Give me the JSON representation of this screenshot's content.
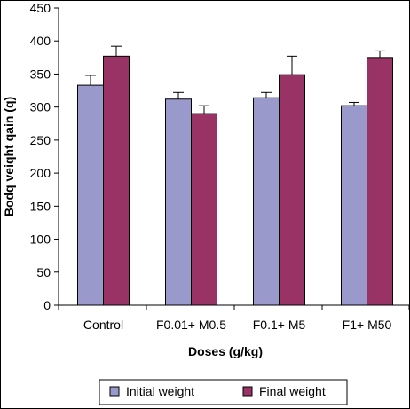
{
  "chart_data": {
    "type": "bar",
    "categories": [
      "Control",
      "F0.01+ M0.5",
      "F0.1+ M5",
      "F1+ M50"
    ],
    "series": [
      {
        "name": "Initial weight",
        "values": [
          333,
          312,
          314,
          302
        ],
        "errors": [
          15,
          10,
          8,
          5
        ],
        "color": "#9999cc"
      },
      {
        "name": "Final weight",
        "values": [
          377,
          290,
          349,
          375
        ],
        "errors": [
          15,
          12,
          28,
          10
        ],
        "color": "#993366"
      }
    ],
    "xlabel": "Doses (g/kg)",
    "ylabel": "Bodq veiqht qain (q)",
    "ylim": [
      0,
      450
    ],
    "yticks": [
      0,
      50,
      100,
      150,
      200,
      250,
      300,
      350,
      400,
      450
    ],
    "grid": false,
    "legend": "bottom"
  }
}
